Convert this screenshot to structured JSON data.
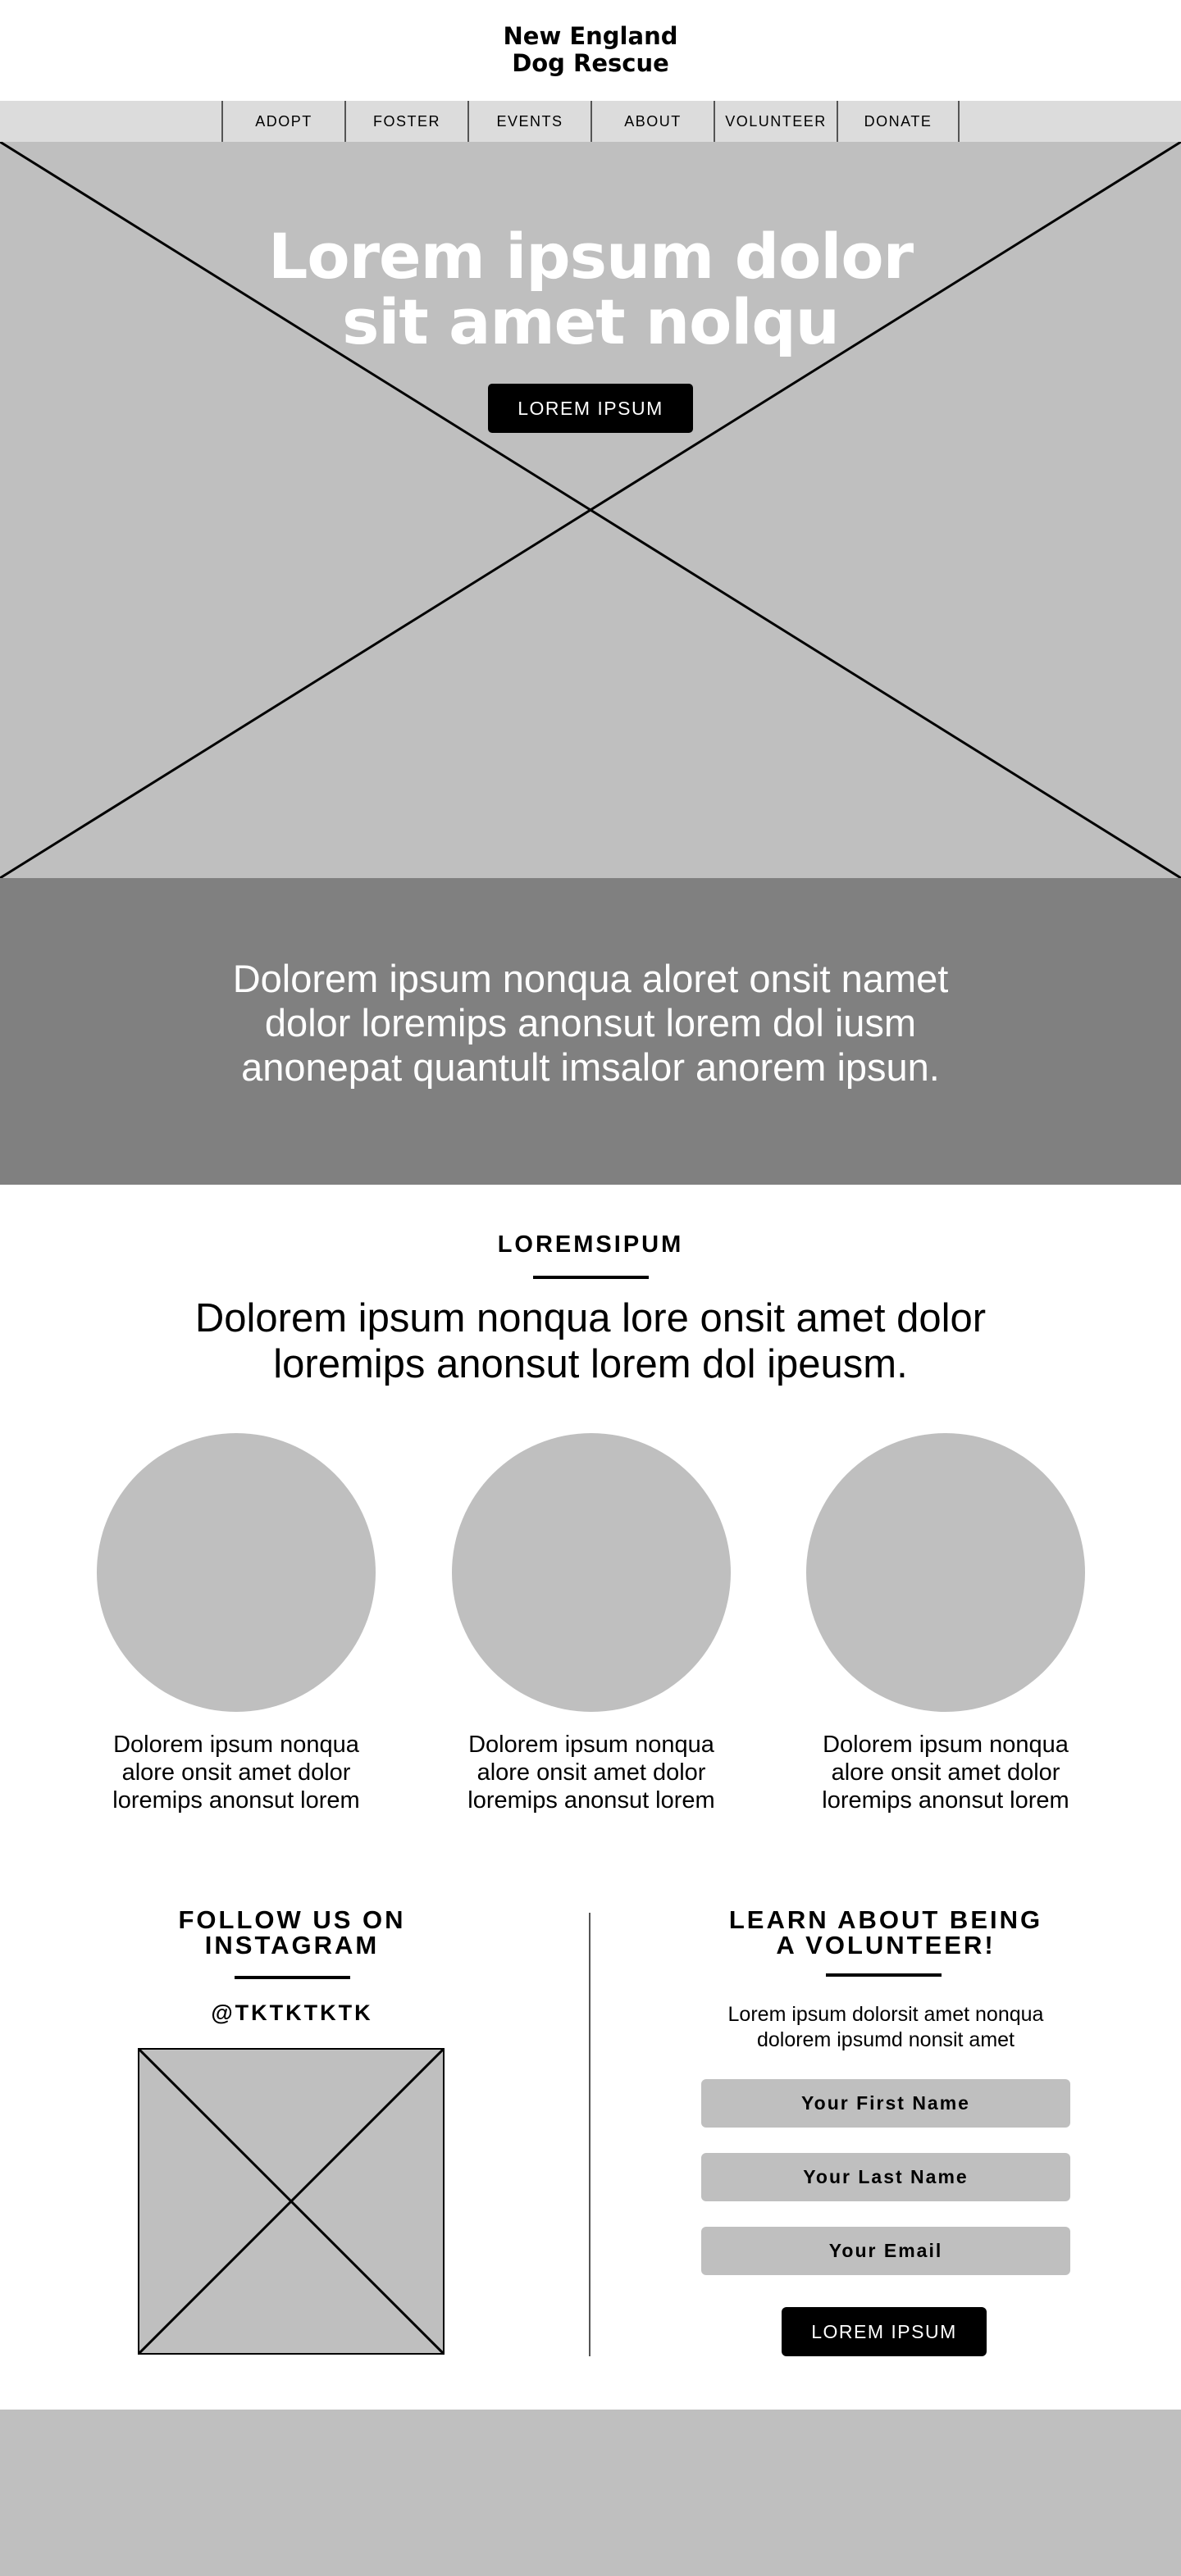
{
  "header": {
    "logo_line1": "New England",
    "logo_line2": "Dog Rescue"
  },
  "nav": {
    "items": [
      "ADOPT",
      "FOSTER",
      "EVENTS",
      "ABOUT",
      "VOLUNTEER",
      "DONATE"
    ]
  },
  "hero": {
    "title_line1": "Lorem ipsum dolor",
    "title_line2": "sit amet nolqu",
    "button_label": "LOREM IPSUM"
  },
  "banner": {
    "line1": "Dolorem ipsum nonqua aloret onsit namet",
    "line2": "dolor loremips anonsut lorem dol iusm",
    "line3": "anonepat quantult imsalor anorem ipsun."
  },
  "features": {
    "eyebrow": "LOREMSIPUM",
    "heading_line1": "Dolorem ipsum nonqua lore onsit amet dolor",
    "heading_line2": "loremips anonsut lorem dol ipeusm.",
    "cards": [
      {
        "line1": "Dolorem ipsum nonqua",
        "line2": "alore onsit amet dolor",
        "line3": "loremips anonsut lorem"
      },
      {
        "line1": "Dolorem ipsum nonqua",
        "line2": "alore onsit amet dolor",
        "line3": "loremips anonsut lorem"
      },
      {
        "line1": "Dolorem ipsum nonqua",
        "line2": "alore onsit amet dolor",
        "line3": "loremips anonsut lorem"
      }
    ]
  },
  "instagram": {
    "title_line1": "FOLLOW US ON",
    "title_line2": "INSTAGRAM",
    "handle": "@TKTKTKTK"
  },
  "volunteer": {
    "title_line1": "LEARN ABOUT BEING",
    "title_line2": "A VOLUNTEER!",
    "desc_line1": "Lorem ipsum dolorsit amet nonqua",
    "desc_line2": "dolorem ipsumd nonsit amet",
    "first_name_placeholder": "Your First Name",
    "last_name_placeholder": "Your Last Name",
    "email_placeholder": "Your Email",
    "button_label": "LOREM IPSUM"
  },
  "colors": {
    "placeholder_gray": "#bfbfbf",
    "nav_gray": "#dcdcdc",
    "banner_gray": "#808080",
    "button_black": "#000000"
  }
}
